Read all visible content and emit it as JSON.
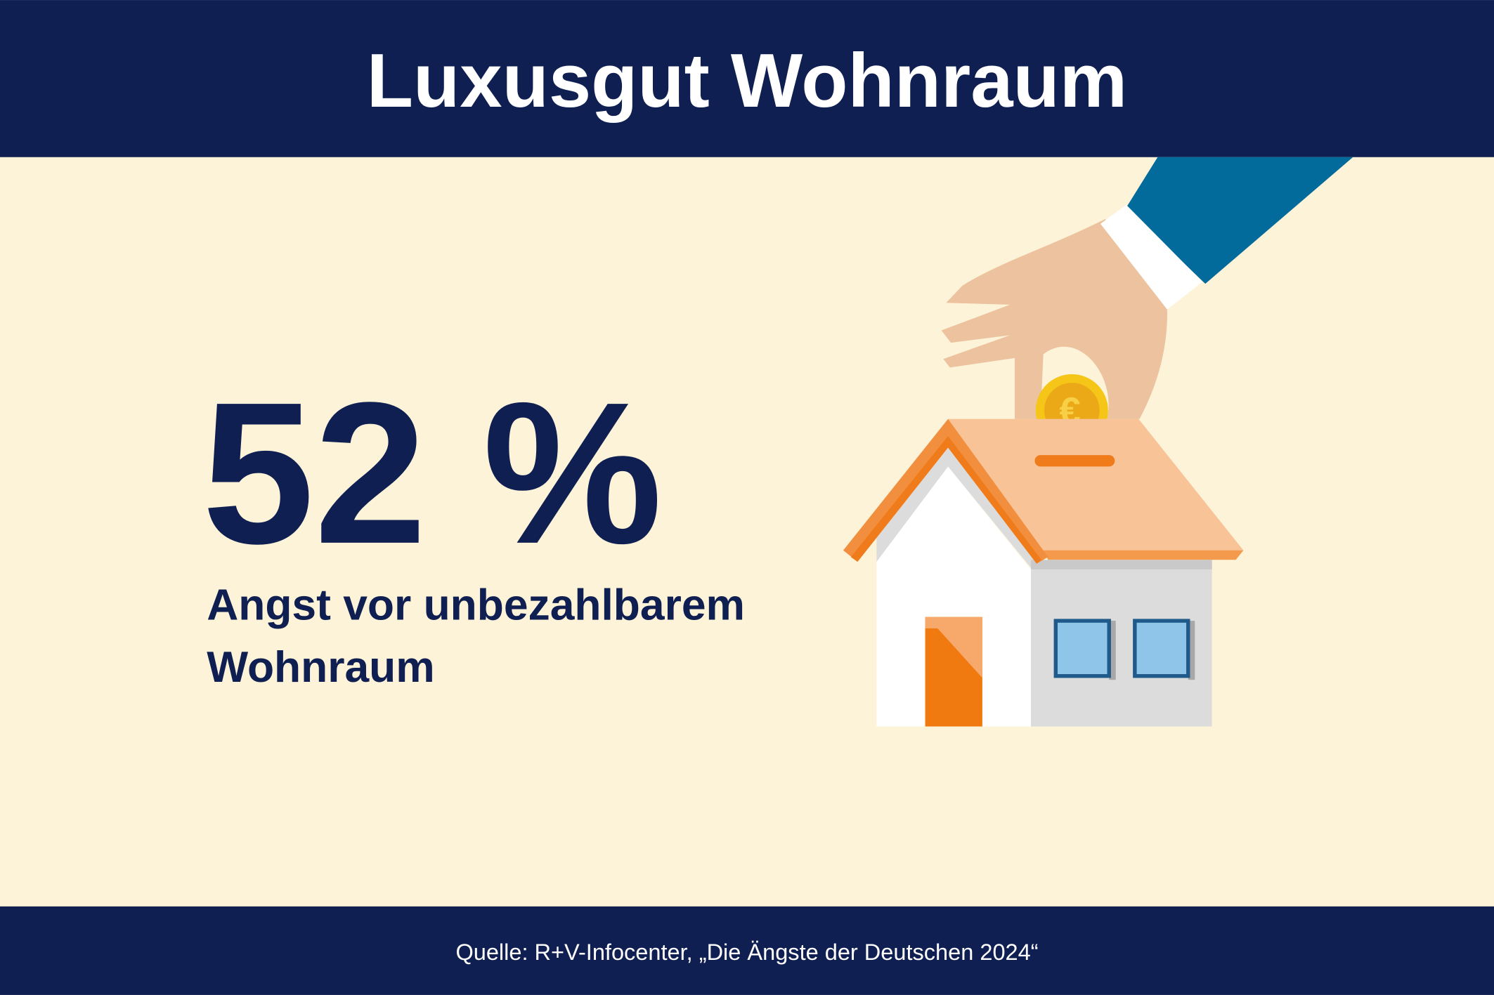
{
  "header": {
    "title": "Luxusgut Wohnraum"
  },
  "stat": {
    "value": "52 %",
    "label_lines": [
      "Angst vor unbezahlbarem",
      "Wohnraum"
    ]
  },
  "footer": {
    "source": "Quelle: R+V-Infocenter, „Die Ängste der Deutschen 2024“"
  }
}
